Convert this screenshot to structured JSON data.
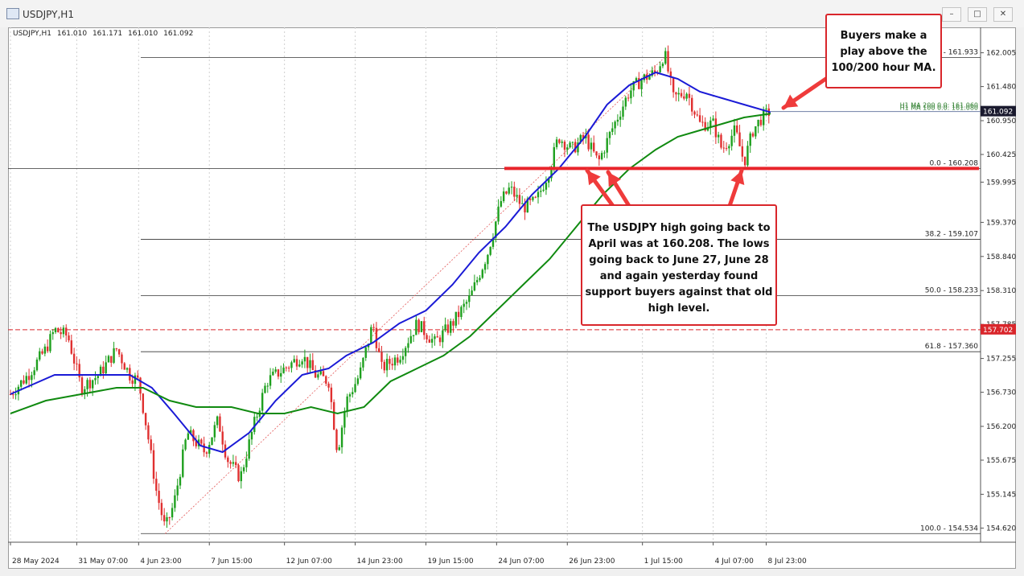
{
  "window": {
    "title": "USDJPY,H1",
    "buttons": [
      "minimize",
      "maximize",
      "close"
    ]
  },
  "ohlc": {
    "symbol": "USDJPY,H1",
    "open": "161.010",
    "high": "161.171",
    "low": "161.010",
    "close": "161.092"
  },
  "chart_data": {
    "type": "candlestick",
    "symbol": "USDJPY",
    "timeframe": "H1",
    "ylim": [
      154.4,
      162.4
    ],
    "grid": true,
    "y_ticks": [
      "162.005",
      "161.480",
      "160.950",
      "160.425",
      "159.995",
      "159.370",
      "158.840",
      "158.310",
      "157.785",
      "157.255",
      "156.730",
      "156.200",
      "155.675",
      "155.145",
      "154.620"
    ],
    "x_ticks": [
      "28 May 2024",
      "31 May 07:00",
      "4 Jun 23:00",
      "7 Jun 15:00",
      "12 Jun 07:00",
      "14 Jun 23:00",
      "19 Jun 15:00",
      "24 Jun 07:00",
      "26 Jun 23:00",
      "1 Jul 15:00",
      "4 Jul 07:00",
      "8 Jul 23:00"
    ],
    "price_path": [
      [
        0,
        156.7
      ],
      [
        4,
        157.0
      ],
      [
        8,
        157.4
      ],
      [
        10,
        157.7
      ],
      [
        13,
        157.6
      ],
      [
        16,
        156.8
      ],
      [
        20,
        157.0
      ],
      [
        24,
        157.4
      ],
      [
        27,
        157.0
      ],
      [
        29,
        156.9
      ],
      [
        31,
        156.1
      ],
      [
        33,
        155.2
      ],
      [
        35,
        154.6
      ],
      [
        37,
        155.0
      ],
      [
        40,
        156.1
      ],
      [
        44,
        155.8
      ],
      [
        47,
        156.3
      ],
      [
        49,
        155.7
      ],
      [
        52,
        155.4
      ],
      [
        55,
        156.2
      ],
      [
        58,
        156.9
      ],
      [
        62,
        157.1
      ],
      [
        66,
        157.3
      ],
      [
        69,
        157.0
      ],
      [
        72,
        156.9
      ],
      [
        74,
        155.8
      ],
      [
        76,
        156.6
      ],
      [
        79,
        157.0
      ],
      [
        82,
        157.8
      ],
      [
        84,
        157.1
      ],
      [
        88,
        157.3
      ],
      [
        92,
        157.8
      ],
      [
        96,
        157.5
      ],
      [
        100,
        157.8
      ],
      [
        104,
        158.2
      ],
      [
        108,
        158.9
      ],
      [
        111,
        159.7
      ],
      [
        113,
        159.9
      ],
      [
        116,
        159.6
      ],
      [
        119,
        159.7
      ],
      [
        122,
        160.2
      ],
      [
        124,
        160.7
      ],
      [
        127,
        160.5
      ],
      [
        130,
        160.7
      ],
      [
        133,
        160.3
      ],
      [
        136,
        160.8
      ],
      [
        140,
        161.4
      ],
      [
        143,
        161.6
      ],
      [
        146,
        161.7
      ],
      [
        148,
        162.0
      ],
      [
        150,
        161.3
      ],
      [
        153,
        161.4
      ],
      [
        156,
        160.9
      ],
      [
        159,
        160.9
      ],
      [
        161,
        160.5
      ],
      [
        164,
        160.8
      ],
      [
        166,
        160.3
      ],
      [
        168,
        160.8
      ],
      [
        170,
        161.0
      ],
      [
        172,
        161.1
      ]
    ],
    "series": [
      {
        "name": "H1 MA 100",
        "color": "#1a1ad6",
        "points": [
          [
            0,
            156.7
          ],
          [
            10,
            157.0
          ],
          [
            20,
            157.0
          ],
          [
            27,
            157.0
          ],
          [
            32,
            156.8
          ],
          [
            37,
            156.4
          ],
          [
            43,
            155.9
          ],
          [
            48,
            155.8
          ],
          [
            54,
            156.1
          ],
          [
            60,
            156.6
          ],
          [
            66,
            157.0
          ],
          [
            72,
            157.1
          ],
          [
            76,
            157.3
          ],
          [
            82,
            157.5
          ],
          [
            88,
            157.8
          ],
          [
            94,
            158.0
          ],
          [
            100,
            158.4
          ],
          [
            106,
            158.9
          ],
          [
            112,
            159.3
          ],
          [
            118,
            159.8
          ],
          [
            124,
            160.2
          ],
          [
            130,
            160.7
          ],
          [
            135,
            161.2
          ],
          [
            140,
            161.5
          ],
          [
            146,
            161.7
          ],
          [
            151,
            161.6
          ],
          [
            156,
            161.4
          ],
          [
            161,
            161.3
          ],
          [
            166,
            161.2
          ],
          [
            172,
            161.08
          ]
        ]
      },
      {
        "name": "H1 MA 200",
        "color": "#108a10",
        "points": [
          [
            0,
            156.4
          ],
          [
            8,
            156.6
          ],
          [
            16,
            156.7
          ],
          [
            24,
            156.8
          ],
          [
            30,
            156.8
          ],
          [
            36,
            156.6
          ],
          [
            42,
            156.5
          ],
          [
            50,
            156.5
          ],
          [
            56,
            156.4
          ],
          [
            62,
            156.4
          ],
          [
            68,
            156.5
          ],
          [
            74,
            156.4
          ],
          [
            80,
            156.5
          ],
          [
            86,
            156.9
          ],
          [
            92,
            157.1
          ],
          [
            98,
            157.3
          ],
          [
            104,
            157.6
          ],
          [
            110,
            158.0
          ],
          [
            116,
            158.4
          ],
          [
            122,
            158.8
          ],
          [
            128,
            159.3
          ],
          [
            134,
            159.8
          ],
          [
            140,
            160.2
          ],
          [
            146,
            160.5
          ],
          [
            151,
            160.7
          ],
          [
            156,
            160.8
          ],
          [
            161,
            160.9
          ],
          [
            166,
            161.0
          ],
          [
            172,
            161.06
          ]
        ]
      }
    ],
    "fib_levels": [
      {
        "label": "0 - 161.933",
        "value": 161.933
      },
      {
        "label": "0.0 - 160.208",
        "value": 160.208
      },
      {
        "label": "38.2 - 159.107",
        "value": 159.107
      },
      {
        "label": "50.0 - 158.233",
        "value": 158.233
      },
      {
        "label": "61.8 - 157.360",
        "value": 157.36
      },
      {
        "label": "100.0 - 154.534",
        "value": 154.534
      }
    ],
    "support_level": 160.208,
    "current_price": {
      "label": "161.092",
      "value": 161.092,
      "color": "#1a1a2e"
    },
    "alert_price": {
      "label": "157.702",
      "value": 157.702,
      "color": "#d9262b"
    },
    "ma_labels": [
      "H1 MA 100 0.0: 161.080",
      "H1 MA 200 0.0: 161.060"
    ],
    "annotations": [
      "Buyers make a play above the 100/200 hour MA.",
      "The USDJPY high going back to April was at 160.208. The lows going back to June 27, June 28 and again yesterday found support buyers against that old high level."
    ]
  },
  "callouts": {
    "top": [
      "Buyers make a",
      "play above the",
      "100/200 hour MA."
    ],
    "main": [
      "The USDJPY high going back to",
      "April was at 160.208. The lows",
      "going back to June 27, June 28",
      "and again yesterday found",
      "support buyers against that old",
      "high level."
    ]
  }
}
